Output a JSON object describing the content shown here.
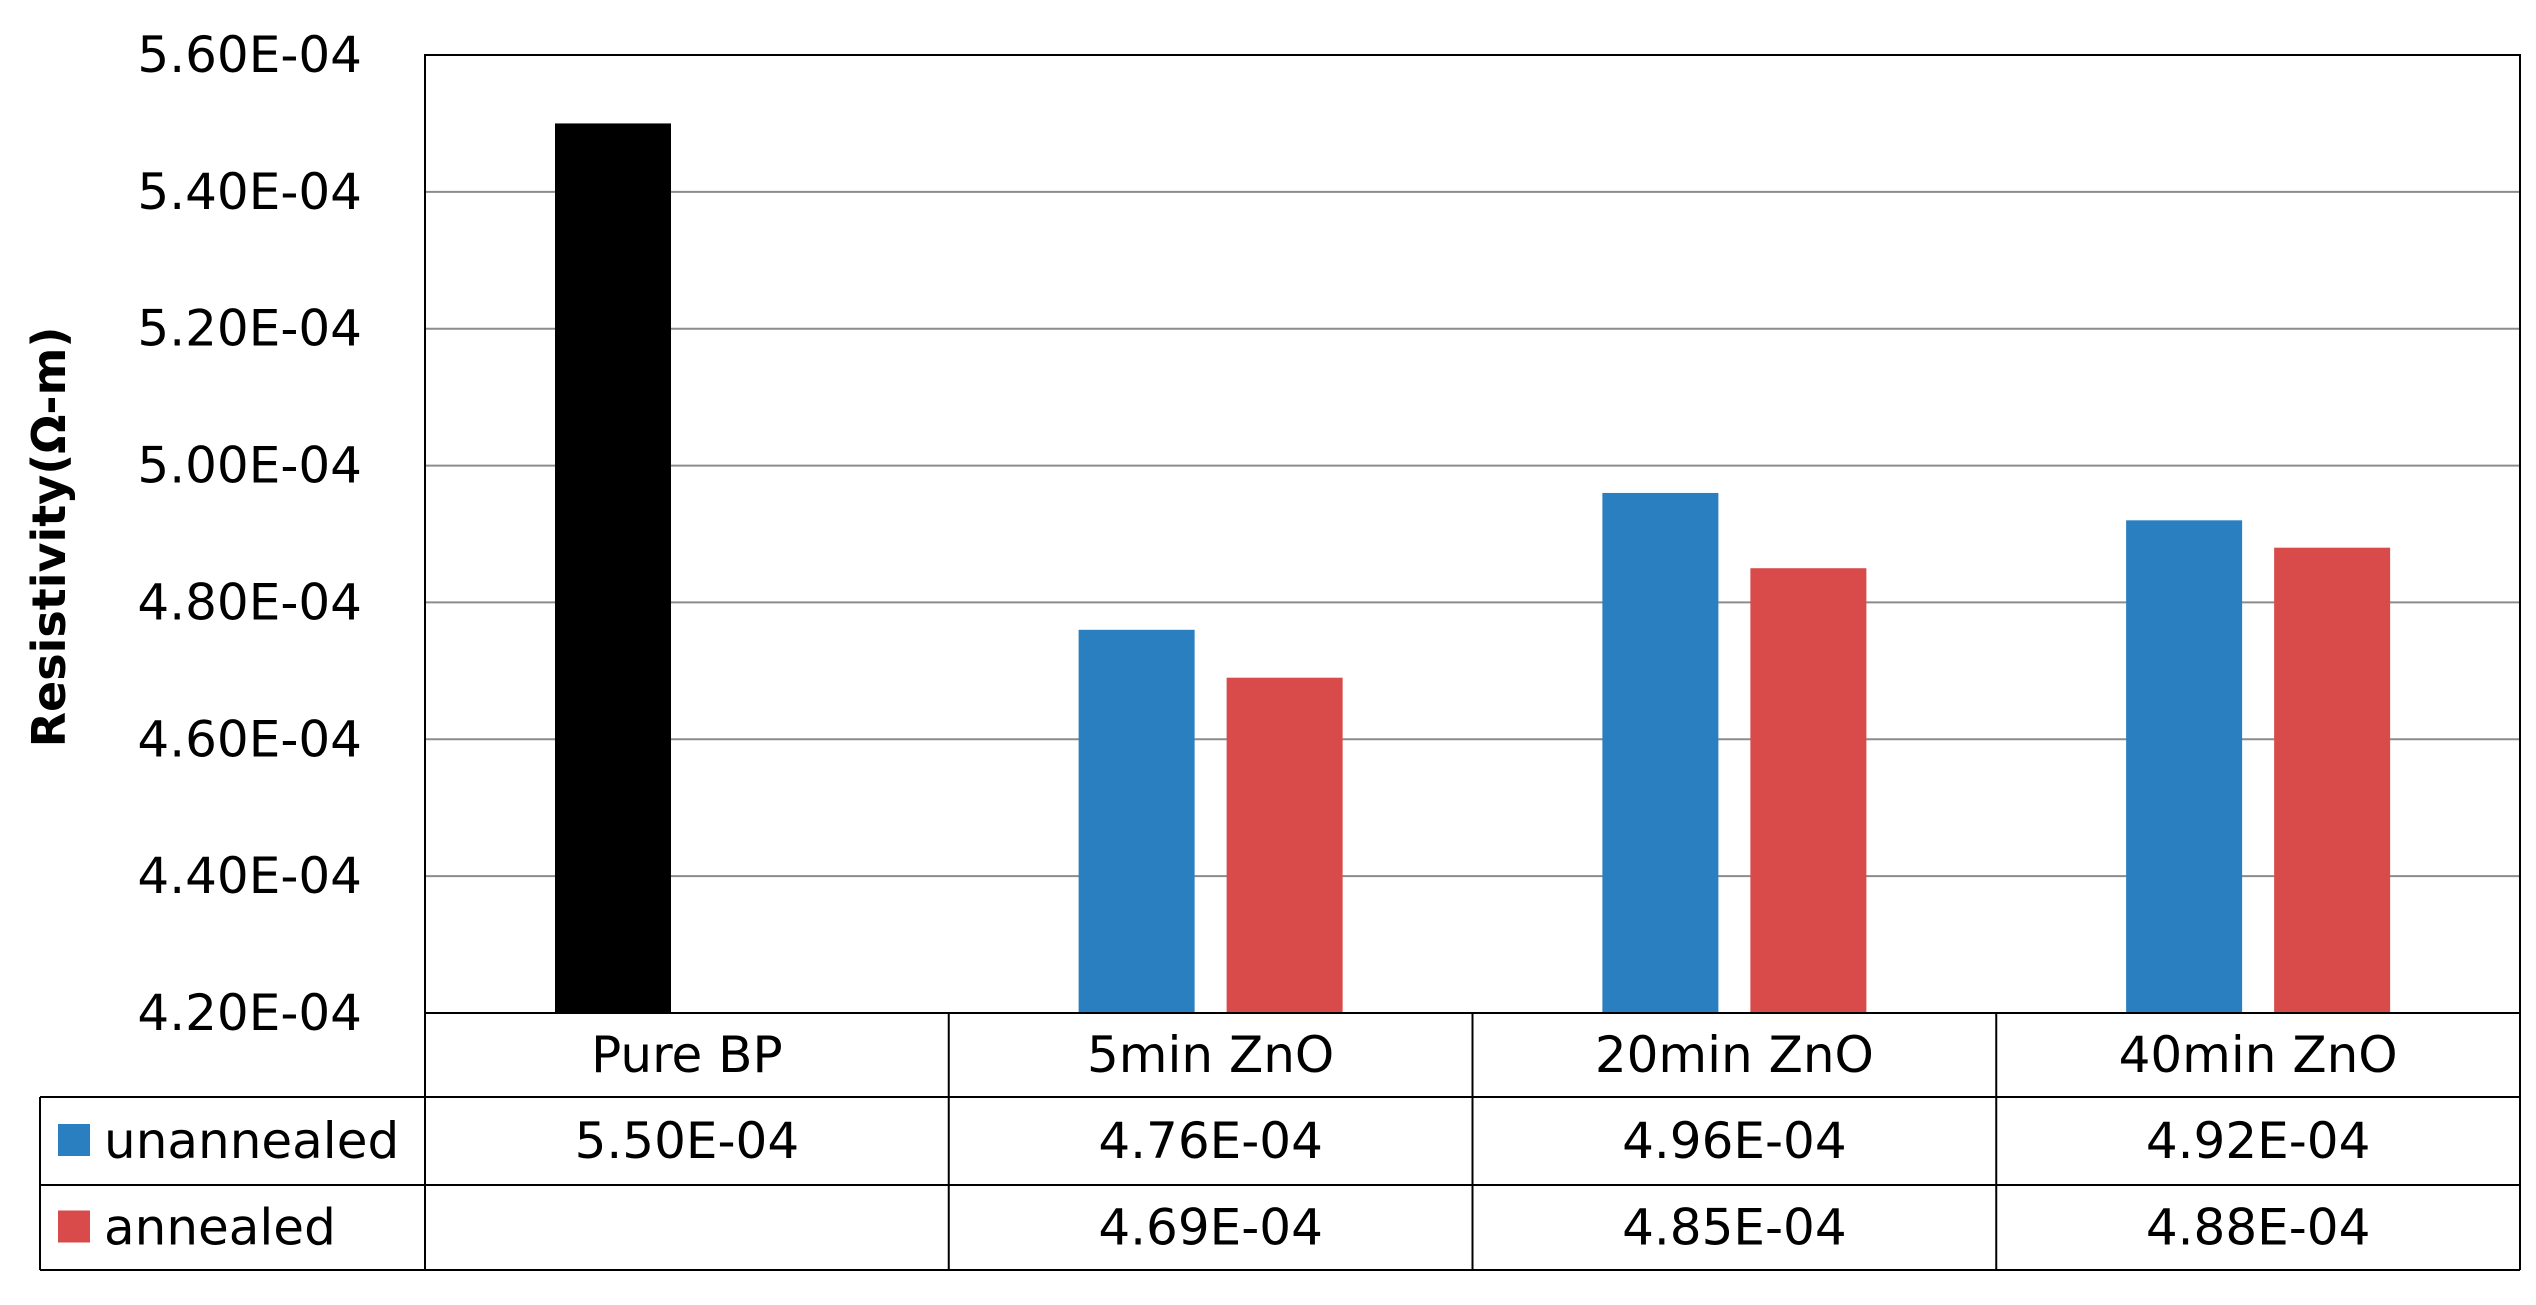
{
  "chart_data": {
    "type": "bar",
    "ylabel": "Resistivity(Ω-m)",
    "xlabel": "",
    "title": "",
    "ylim": [
      0.00042,
      0.00056
    ],
    "yticks": [
      0.00042,
      0.00044,
      0.00046,
      0.00048,
      0.0005,
      0.00052,
      0.00054,
      0.00056
    ],
    "ytick_labels": [
      "4.20E-04",
      "4.40E-04",
      "4.60E-04",
      "4.80E-04",
      "5.00E-04",
      "5.20E-04",
      "5.40E-04",
      "5.60E-04"
    ],
    "grid": true,
    "legend": "data-table",
    "categories": [
      "Pure BP",
      "5min ZnO",
      "20min ZnO",
      "40min ZnO"
    ],
    "series": [
      {
        "name": "unannealed",
        "values": [
          0.00055,
          0.000476,
          0.000496,
          0.000492
        ],
        "labels": [
          "5.50E-04",
          "4.76E-04",
          "4.96E-04",
          "4.92E-04"
        ],
        "point_colors": [
          "#000000",
          "#2a7fc1",
          "#2a7fc1",
          "#2a7fc1"
        ],
        "color": "#2a7fc1"
      },
      {
        "name": "annealed",
        "values": [
          null,
          0.000469,
          0.000485,
          0.000488
        ],
        "labels": [
          "",
          "4.69E-04",
          "4.85E-04",
          "4.88E-04"
        ],
        "color": "#d94b4b"
      }
    ]
  }
}
